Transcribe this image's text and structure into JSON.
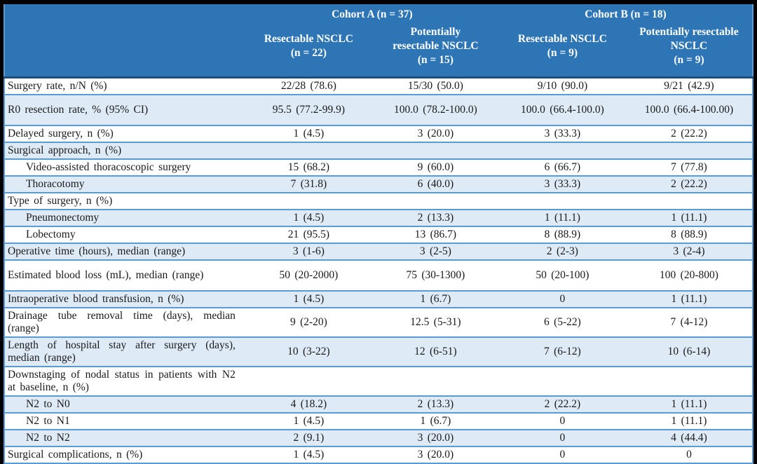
{
  "colors": {
    "header_background": "#2E75B6",
    "header_text": "#FFFFFF",
    "header_bottom_border": "#1F4E79",
    "row_separator": "#5B9BD5",
    "row_alternate_background": "#DEEAF6",
    "row_background": "#FFFFFF",
    "body_text": "#1A1A1A",
    "outer_frame": "#000000"
  },
  "table": {
    "header": {
      "cohort_a": "Cohort A (n = 37)",
      "cohort_b": "Cohort B (n = 18)",
      "subheaders": [
        "Resectable NSCLC\n(n = 22)",
        "Potentially\nresectable NSCLC\n(n = 15)",
        "Resectable NSCLC\n(n = 9)",
        "Potentially resectable\nNSCLC\n(n = 9)"
      ]
    },
    "rows": [
      {
        "label": "Surgery rate, n/N (%)",
        "indent": false,
        "shade": "white",
        "tall": false,
        "values": [
          "22/28 (78.6)",
          "15/30 (50.0)",
          "9/10 (90.0)",
          "9/21 (42.9)"
        ]
      },
      {
        "label": "R0 resection rate, % (95% CI)",
        "indent": false,
        "shade": "blue",
        "tall": true,
        "values": [
          "95.5 (77.2-99.9)",
          "100.0 (78.2-100.0)",
          "100.0 (66.4-100.0)",
          "100.0 (66.4-100.00)"
        ]
      },
      {
        "label": "Delayed surgery, n (%)",
        "indent": false,
        "shade": "white",
        "tall": false,
        "values": [
          "1 (4.5)",
          "3 (20.0)",
          "3 (33.3)",
          "2 (22.2)"
        ]
      },
      {
        "label": "Surgical approach, n (%)",
        "indent": false,
        "shade": "blue",
        "tall": false,
        "values": [
          "",
          "",
          "",
          ""
        ]
      },
      {
        "label": "Video-assisted thoracoscopic surgery",
        "indent": true,
        "shade": "white",
        "tall": false,
        "values": [
          "15 (68.2)",
          "9 (60.0)",
          "6 (66.7)",
          "7 (77.8)"
        ]
      },
      {
        "label": "Thoracotomy",
        "indent": true,
        "shade": "blue",
        "tall": false,
        "values": [
          "7 (31.8)",
          "6 (40.0)",
          "3 (33.3)",
          "2 (22.2)"
        ]
      },
      {
        "label": "Type of surgery, n (%)",
        "indent": false,
        "shade": "white",
        "tall": false,
        "values": [
          "",
          "",
          "",
          ""
        ]
      },
      {
        "label": "Pneumonectomy",
        "indent": true,
        "shade": "blue",
        "tall": false,
        "values": [
          "1 (4.5)",
          "2 (13.3)",
          "1 (11.1)",
          "1 (11.1)"
        ]
      },
      {
        "label": "Lobectomy",
        "indent": true,
        "shade": "white",
        "tall": false,
        "values": [
          "21 (95.5)",
          "13 (86.7)",
          "8 (88.9)",
          "8 (88.9)"
        ]
      },
      {
        "label": "Operative time (hours), median (range)",
        "indent": false,
        "shade": "blue",
        "tall": false,
        "values": [
          "3 (1-6)",
          "3 (2-5)",
          "2 (2-3)",
          "3 (2-4)"
        ]
      },
      {
        "label": "Estimated blood loss (mL), median (range)",
        "indent": false,
        "shade": "white",
        "tall": true,
        "values": [
          "50 (20-2000)",
          "75 (30-1300)",
          "50 (20-100)",
          "100 (20-800)"
        ]
      },
      {
        "label": "Intraoperative blood transfusion, n (%)",
        "indent": false,
        "shade": "blue",
        "tall": false,
        "values": [
          "1 (4.5)",
          "1 (6.7)",
          "0",
          "1 (11.1)"
        ]
      },
      {
        "label": "Drainage tube removal time (days), median (range)",
        "indent": false,
        "shade": "white",
        "tall": false,
        "values": [
          "9 (2-20)",
          "12.5 (5-31)",
          "6 (5-22)",
          "7 (4-12)"
        ]
      },
      {
        "label": "Length of hospital stay after surgery (days), median (range)",
        "indent": false,
        "shade": "blue",
        "tall": false,
        "values": [
          "10 (3-22)",
          "12 (6-51)",
          "7 (6-12)",
          "10 (6-14)"
        ]
      },
      {
        "label": "Downstaging of nodal status in patients with N2 at baseline, n (%)",
        "indent": false,
        "shade": "white",
        "tall": false,
        "values": [
          "",
          "",
          "",
          ""
        ]
      },
      {
        "label": "N2 to N0",
        "indent": true,
        "shade": "blue",
        "tall": false,
        "values": [
          "4 (18.2)",
          "2 (13.3)",
          "2 (22.2)",
          "1 (11.1)"
        ]
      },
      {
        "label": "N2 to N1",
        "indent": true,
        "shade": "white",
        "tall": false,
        "values": [
          "1 (4.5)",
          "1 (6.7)",
          "0",
          "1 (11.1)"
        ]
      },
      {
        "label": "N2 to N2",
        "indent": true,
        "shade": "blue",
        "tall": false,
        "values": [
          "2 (9.1)",
          "3 (20.0)",
          "0",
          "4 (44.4)"
        ]
      },
      {
        "label": "Surgical complications, n (%)",
        "indent": false,
        "shade": "white",
        "tall": false,
        "values": [
          "1 (4.5)",
          "3 (20.0)",
          "0",
          "0"
        ]
      }
    ]
  }
}
